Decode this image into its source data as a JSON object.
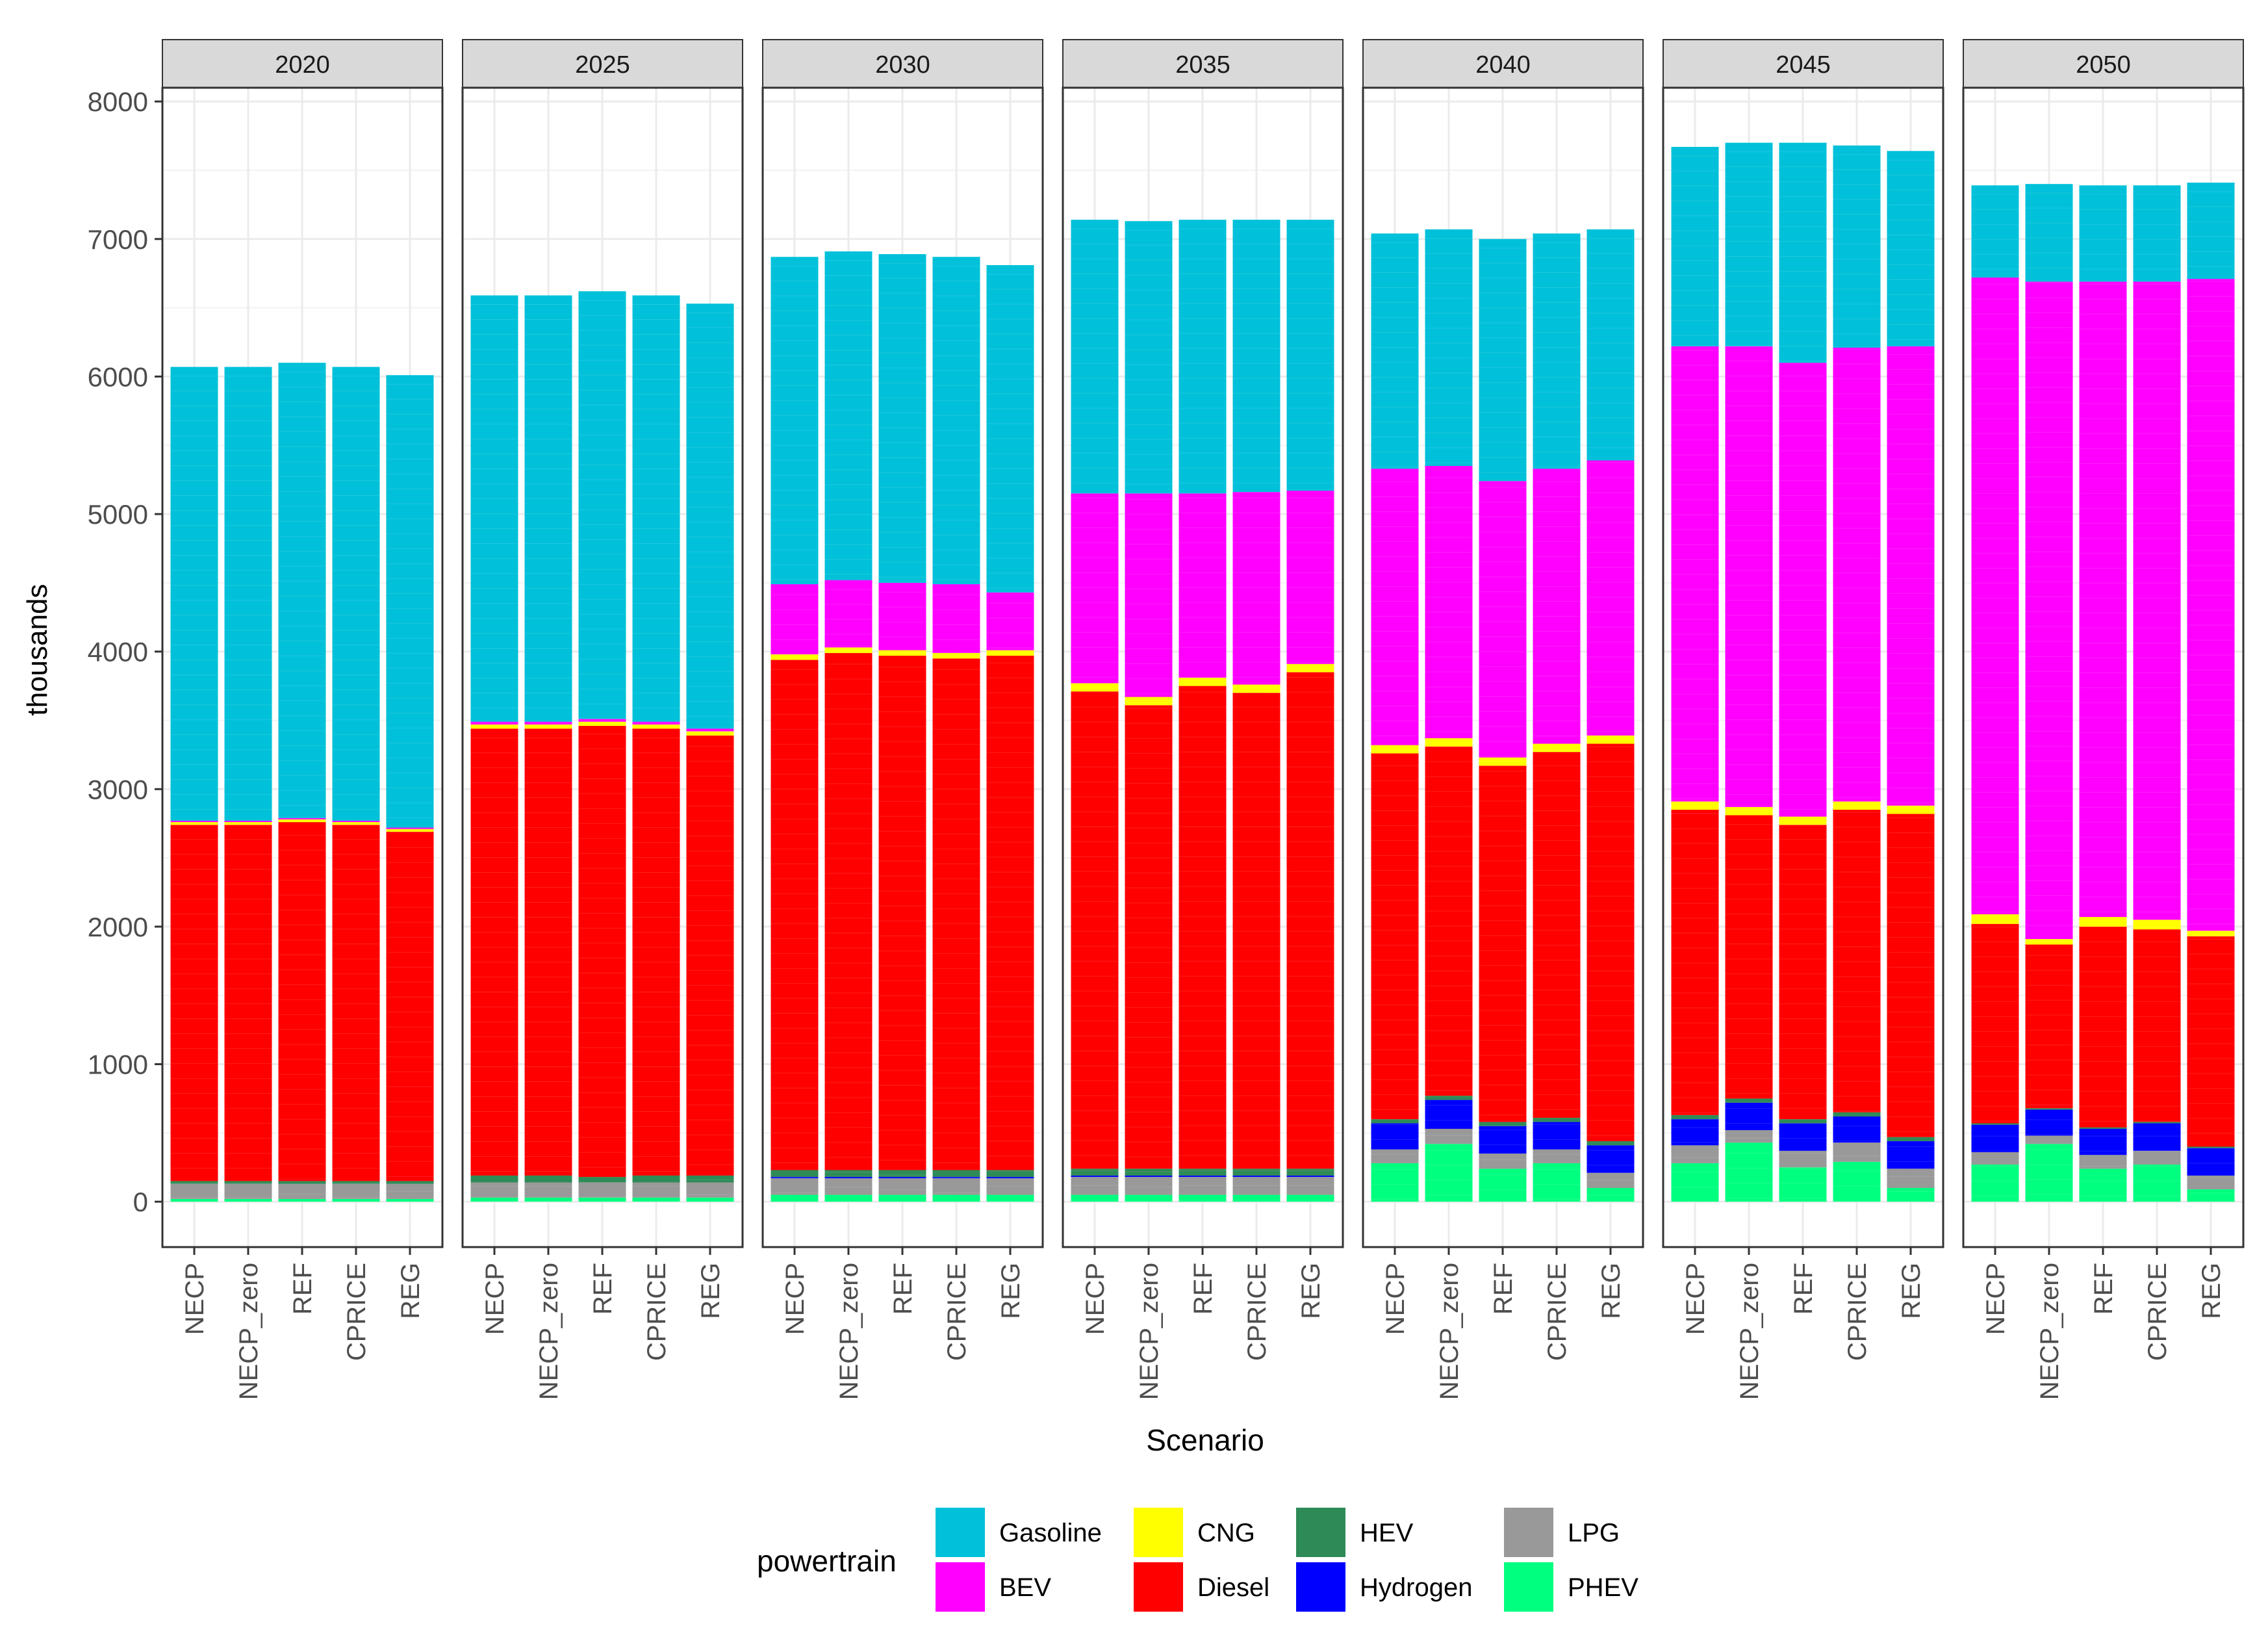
{
  "chart_data": {
    "type": "bar",
    "stacked": true,
    "facet_by": "year",
    "ylabel": "thousands",
    "xlabel": "Scenario",
    "ylim": [
      -330,
      8100
    ],
    "yticks": [
      0,
      1000,
      2000,
      3000,
      4000,
      5000,
      6000,
      7000,
      8000
    ],
    "ytick_labels": [
      "0",
      "1000",
      "2000",
      "3000",
      "4000",
      "5000",
      "6000",
      "7000",
      "8000"
    ],
    "grid": true,
    "legend_title": "powertrain",
    "legend_position": "bottom",
    "categories": [
      "NECP",
      "NECP_zero",
      "REF",
      "CPRICE",
      "REG"
    ],
    "stack_order": [
      "PHEV",
      "LPG",
      "Hydrogen",
      "HEV",
      "Diesel",
      "CNG",
      "BEV",
      "Gasoline"
    ],
    "legend_order": [
      "Gasoline",
      "BEV",
      "CNG",
      "Diesel",
      "HEV",
      "Hydrogen",
      "LPG",
      "PHEV"
    ],
    "colors": {
      "Gasoline": "#00C1D9",
      "BEV": "#FF00FF",
      "CNG": "#FFFF00",
      "Diesel": "#FF0000",
      "HEV": "#2E8B57",
      "Hydrogen": "#0000FF",
      "LPG": "#999999",
      "PHEV": "#00FF7F"
    },
    "panels": [
      {
        "year": "2020",
        "bars": [
          {
            "scenario": "NECP",
            "PHEV": 20,
            "LPG": 110,
            "Hydrogen": 0,
            "HEV": 20,
            "Diesel": 2590,
            "CNG": 20,
            "BEV": 10,
            "Gasoline": 3300
          },
          {
            "scenario": "NECP_zero",
            "PHEV": 20,
            "LPG": 110,
            "Hydrogen": 0,
            "HEV": 20,
            "Diesel": 2590,
            "CNG": 20,
            "BEV": 10,
            "Gasoline": 3300
          },
          {
            "scenario": "REF",
            "PHEV": 20,
            "LPG": 110,
            "Hydrogen": 0,
            "HEV": 20,
            "Diesel": 2610,
            "CNG": 20,
            "BEV": 10,
            "Gasoline": 3310
          },
          {
            "scenario": "CPRICE",
            "PHEV": 20,
            "LPG": 110,
            "Hydrogen": 0,
            "HEV": 20,
            "Diesel": 2590,
            "CNG": 20,
            "BEV": 10,
            "Gasoline": 3300
          },
          {
            "scenario": "REG",
            "PHEV": 20,
            "LPG": 110,
            "Hydrogen": 0,
            "HEV": 20,
            "Diesel": 2540,
            "CNG": 20,
            "BEV": 10,
            "Gasoline": 3290
          }
        ]
      },
      {
        "year": "2025",
        "bars": [
          {
            "scenario": "NECP",
            "PHEV": 30,
            "LPG": 110,
            "Hydrogen": 0,
            "HEV": 50,
            "Diesel": 3250,
            "CNG": 30,
            "BEV": 20,
            "Gasoline": 3100
          },
          {
            "scenario": "NECP_zero",
            "PHEV": 30,
            "LPG": 110,
            "Hydrogen": 0,
            "HEV": 50,
            "Diesel": 3250,
            "CNG": 30,
            "BEV": 20,
            "Gasoline": 3100
          },
          {
            "scenario": "REF",
            "PHEV": 30,
            "LPG": 110,
            "Hydrogen": 0,
            "HEV": 40,
            "Diesel": 3280,
            "CNG": 30,
            "BEV": 20,
            "Gasoline": 3110
          },
          {
            "scenario": "CPRICE",
            "PHEV": 30,
            "LPG": 110,
            "Hydrogen": 0,
            "HEV": 50,
            "Diesel": 3250,
            "CNG": 30,
            "BEV": 20,
            "Gasoline": 3100
          },
          {
            "scenario": "REG",
            "PHEV": 30,
            "LPG": 110,
            "Hydrogen": 0,
            "HEV": 50,
            "Diesel": 3200,
            "CNG": 30,
            "BEV": 20,
            "Gasoline": 3090
          }
        ]
      },
      {
        "year": "2030",
        "bars": [
          {
            "scenario": "NECP",
            "PHEV": 50,
            "LPG": 120,
            "Hydrogen": 10,
            "HEV": 50,
            "Diesel": 3710,
            "CNG": 40,
            "BEV": 510,
            "Gasoline": 2380
          },
          {
            "scenario": "NECP_zero",
            "PHEV": 50,
            "LPG": 120,
            "Hydrogen": 10,
            "HEV": 50,
            "Diesel": 3760,
            "CNG": 40,
            "BEV": 490,
            "Gasoline": 2390
          },
          {
            "scenario": "REF",
            "PHEV": 50,
            "LPG": 120,
            "Hydrogen": 10,
            "HEV": 50,
            "Diesel": 3740,
            "CNG": 40,
            "BEV": 490,
            "Gasoline": 2390
          },
          {
            "scenario": "CPRICE",
            "PHEV": 50,
            "LPG": 120,
            "Hydrogen": 10,
            "HEV": 50,
            "Diesel": 3720,
            "CNG": 40,
            "BEV": 500,
            "Gasoline": 2380
          },
          {
            "scenario": "REG",
            "PHEV": 50,
            "LPG": 120,
            "Hydrogen": 10,
            "HEV": 50,
            "Diesel": 3740,
            "CNG": 40,
            "BEV": 420,
            "Gasoline": 2380
          }
        ]
      },
      {
        "year": "2035",
        "bars": [
          {
            "scenario": "NECP",
            "PHEV": 50,
            "LPG": 130,
            "Hydrogen": 10,
            "HEV": 50,
            "Diesel": 3470,
            "CNG": 60,
            "BEV": 1380,
            "Gasoline": 1990
          },
          {
            "scenario": "NECP_zero",
            "PHEV": 50,
            "LPG": 130,
            "Hydrogen": 10,
            "HEV": 50,
            "Diesel": 3370,
            "CNG": 60,
            "BEV": 1480,
            "Gasoline": 1980
          },
          {
            "scenario": "REF",
            "PHEV": 50,
            "LPG": 130,
            "Hydrogen": 10,
            "HEV": 50,
            "Diesel": 3510,
            "CNG": 60,
            "BEV": 1340,
            "Gasoline": 1990
          },
          {
            "scenario": "CPRICE",
            "PHEV": 50,
            "LPG": 130,
            "Hydrogen": 10,
            "HEV": 50,
            "Diesel": 3460,
            "CNG": 60,
            "BEV": 1400,
            "Gasoline": 1980
          },
          {
            "scenario": "REG",
            "PHEV": 50,
            "LPG": 130,
            "Hydrogen": 10,
            "HEV": 50,
            "Diesel": 3610,
            "CNG": 60,
            "BEV": 1260,
            "Gasoline": 1970
          }
        ]
      },
      {
        "year": "2040",
        "bars": [
          {
            "scenario": "NECP",
            "PHEV": 280,
            "LPG": 100,
            "Hydrogen": 190,
            "HEV": 30,
            "Diesel": 2660,
            "CNG": 60,
            "BEV": 2010,
            "Gasoline": 1710
          },
          {
            "scenario": "NECP_zero",
            "PHEV": 420,
            "LPG": 110,
            "Hydrogen": 210,
            "HEV": 30,
            "Diesel": 2540,
            "CNG": 60,
            "BEV": 1980,
            "Gasoline": 1720
          },
          {
            "scenario": "REF",
            "PHEV": 240,
            "LPG": 110,
            "Hydrogen": 200,
            "HEV": 30,
            "Diesel": 2590,
            "CNG": 60,
            "BEV": 2010,
            "Gasoline": 1760
          },
          {
            "scenario": "CPRICE",
            "PHEV": 280,
            "LPG": 100,
            "Hydrogen": 200,
            "HEV": 30,
            "Diesel": 2660,
            "CNG": 60,
            "BEV": 2000,
            "Gasoline": 1710
          },
          {
            "scenario": "REG",
            "PHEV": 100,
            "LPG": 110,
            "Hydrogen": 200,
            "HEV": 30,
            "Diesel": 2890,
            "CNG": 60,
            "BEV": 2000,
            "Gasoline": 1680
          }
        ]
      },
      {
        "year": "2045",
        "bars": [
          {
            "scenario": "NECP",
            "PHEV": 280,
            "LPG": 130,
            "Hydrogen": 190,
            "HEV": 30,
            "Diesel": 2220,
            "CNG": 60,
            "BEV": 3310,
            "Gasoline": 1450
          },
          {
            "scenario": "NECP_zero",
            "PHEV": 430,
            "LPG": 90,
            "Hydrogen": 200,
            "HEV": 30,
            "Diesel": 2060,
            "CNG": 60,
            "BEV": 3350,
            "Gasoline": 1480
          },
          {
            "scenario": "REF",
            "PHEV": 250,
            "LPG": 120,
            "Hydrogen": 200,
            "HEV": 30,
            "Diesel": 2140,
            "CNG": 60,
            "BEV": 3300,
            "Gasoline": 1600
          },
          {
            "scenario": "CPRICE",
            "PHEV": 290,
            "LPG": 140,
            "Hydrogen": 190,
            "HEV": 30,
            "Diesel": 2200,
            "CNG": 60,
            "BEV": 3300,
            "Gasoline": 1470
          },
          {
            "scenario": "REG",
            "PHEV": 100,
            "LPG": 140,
            "Hydrogen": 200,
            "HEV": 30,
            "Diesel": 2350,
            "CNG": 60,
            "BEV": 3340,
            "Gasoline": 1420
          }
        ]
      },
      {
        "year": "2050",
        "bars": [
          {
            "scenario": "NECP",
            "PHEV": 270,
            "LPG": 90,
            "Hydrogen": 200,
            "HEV": 10,
            "Diesel": 1450,
            "CNG": 70,
            "BEV": 4630,
            "Gasoline": 670
          },
          {
            "scenario": "NECP_zero",
            "PHEV": 420,
            "LPG": 60,
            "Hydrogen": 190,
            "HEV": 10,
            "Diesel": 1190,
            "CNG": 40,
            "BEV": 4780,
            "Gasoline": 710
          },
          {
            "scenario": "REF",
            "PHEV": 240,
            "LPG": 100,
            "Hydrogen": 190,
            "HEV": 10,
            "Diesel": 1460,
            "CNG": 70,
            "BEV": 4620,
            "Gasoline": 700
          },
          {
            "scenario": "CPRICE",
            "PHEV": 270,
            "LPG": 100,
            "Hydrogen": 200,
            "HEV": 10,
            "Diesel": 1400,
            "CNG": 70,
            "BEV": 4640,
            "Gasoline": 700
          },
          {
            "scenario": "REG",
            "PHEV": 90,
            "LPG": 100,
            "Hydrogen": 200,
            "HEV": 10,
            "Diesel": 1530,
            "CNG": 40,
            "BEV": 4740,
            "Gasoline": 700
          }
        ]
      }
    ]
  }
}
